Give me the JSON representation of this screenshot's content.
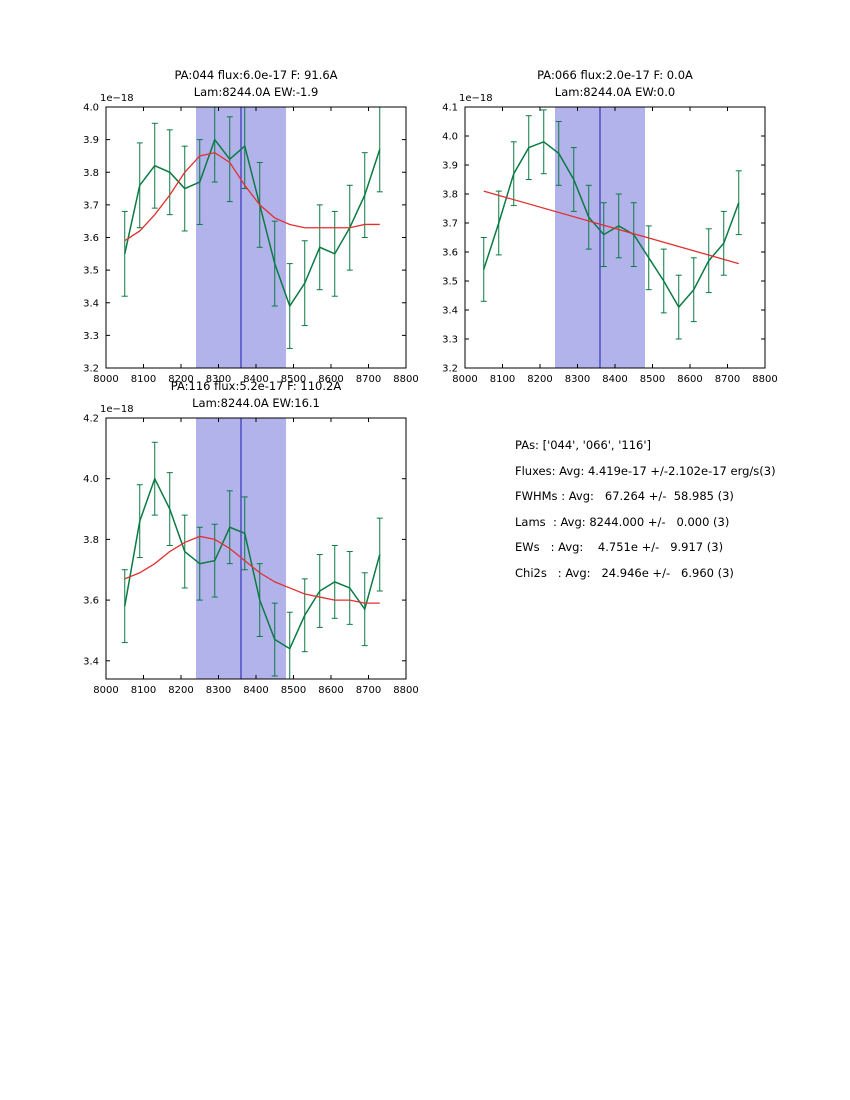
{
  "colors": {
    "series": "#0b7a43",
    "fit": "#e13030",
    "band": "#b3b3ec",
    "vline": "#3535bb",
    "axis": "#000000"
  },
  "stats": {
    "pas": "PAs: ['044', '066', '116']",
    "fluxes": "Fluxes: Avg: 4.419e-17 +/-2.102e-17 erg/s(3)",
    "fwhms": "FWHMs : Avg:   67.264 +/-  58.985 (3)",
    "lams": "Lams  : Avg: 8244.000 +/-   0.000 (3)",
    "ews": "EWs   : Avg:    4.751e +/-   9.917 (3)",
    "chi2s": "Chi2s   : Avg:   24.946e +/-   6.960 (3)"
  },
  "chart_data": [
    {
      "type": "line",
      "title_line1": "PA:044 flux:6.0e-17 F: 91.6A",
      "title_line2": "Lam:8244.0A EW:-1.9",
      "offset_label": "1e−18",
      "xlim": [
        8000,
        8800
      ],
      "ylim": [
        3.2,
        4.0
      ],
      "xticks": [
        "8000",
        "8100",
        "8200",
        "8300",
        "8400",
        "8500",
        "8600",
        "8700",
        "8800"
      ],
      "yticks": [
        "3.2",
        "3.3",
        "3.4",
        "3.5",
        "3.6",
        "3.7",
        "3.8",
        "3.9",
        "4.0"
      ],
      "band": [
        8240,
        8480
      ],
      "vline": 8360,
      "x": [
        8050,
        8090,
        8130,
        8170,
        8210,
        8250,
        8290,
        8330,
        8370,
        8410,
        8450,
        8490,
        8530,
        8570,
        8610,
        8650,
        8690,
        8730
      ],
      "y": [
        3.55,
        3.76,
        3.82,
        3.8,
        3.75,
        3.77,
        3.9,
        3.84,
        3.88,
        3.7,
        3.52,
        3.39,
        3.46,
        3.57,
        3.55,
        3.63,
        3.73,
        3.87
      ],
      "yerr": 0.13,
      "fit_x": [
        8050,
        8090,
        8130,
        8170,
        8210,
        8250,
        8290,
        8330,
        8370,
        8410,
        8450,
        8490,
        8530,
        8570,
        8610,
        8650,
        8690,
        8730
      ],
      "fit_y": [
        3.59,
        3.62,
        3.67,
        3.73,
        3.8,
        3.85,
        3.86,
        3.83,
        3.76,
        3.7,
        3.66,
        3.64,
        3.63,
        3.63,
        3.63,
        3.63,
        3.64,
        3.64
      ]
    },
    {
      "type": "line",
      "title_line1": "PA:066 flux:2.0e-17 F: 0.0A",
      "title_line2": "Lam:8244.0A EW:0.0",
      "offset_label": "1e−18",
      "xlim": [
        8000,
        8800
      ],
      "ylim": [
        3.2,
        4.1
      ],
      "xticks": [
        "8000",
        "8100",
        "8200",
        "8300",
        "8400",
        "8500",
        "8600",
        "8700",
        "8800"
      ],
      "yticks": [
        "3.2",
        "3.3",
        "3.4",
        "3.5",
        "3.6",
        "3.7",
        "3.8",
        "3.9",
        "4.0",
        "4.1"
      ],
      "band": [
        8240,
        8480
      ],
      "vline": 8360,
      "x": [
        8050,
        8090,
        8130,
        8170,
        8210,
        8250,
        8290,
        8330,
        8370,
        8410,
        8450,
        8490,
        8530,
        8570,
        8610,
        8650,
        8690,
        8730
      ],
      "y": [
        3.54,
        3.7,
        3.87,
        3.96,
        3.98,
        3.94,
        3.85,
        3.72,
        3.66,
        3.69,
        3.66,
        3.58,
        3.5,
        3.41,
        3.47,
        3.57,
        3.63,
        3.77
      ],
      "yerr": 0.11,
      "fit_x": [
        8050,
        8730
      ],
      "fit_y": [
        3.81,
        3.56
      ]
    },
    {
      "type": "line",
      "title_line1": "PA:116 flux:5.2e-17 F: 110.2A",
      "title_line2": "Lam:8244.0A EW:16.1",
      "offset_label": "1e−18",
      "xlim": [
        8000,
        8800
      ],
      "ylim": [
        3.34,
        4.2
      ],
      "xticks": [
        "8000",
        "8100",
        "8200",
        "8300",
        "8400",
        "8500",
        "8600",
        "8700",
        "8800"
      ],
      "yticks": [
        "3.4",
        "3.6",
        "3.8",
        "4.0",
        "4.2"
      ],
      "band": [
        8240,
        8480
      ],
      "vline": 8360,
      "x": [
        8050,
        8090,
        8130,
        8170,
        8210,
        8250,
        8290,
        8330,
        8370,
        8410,
        8450,
        8490,
        8530,
        8570,
        8610,
        8650,
        8690,
        8730
      ],
      "y": [
        3.58,
        3.86,
        4.0,
        3.9,
        3.76,
        3.72,
        3.73,
        3.84,
        3.82,
        3.6,
        3.47,
        3.44,
        3.55,
        3.63,
        3.66,
        3.64,
        3.57,
        3.75
      ],
      "yerr": 0.12,
      "fit_x": [
        8050,
        8090,
        8130,
        8170,
        8210,
        8250,
        8290,
        8330,
        8370,
        8410,
        8450,
        8490,
        8530,
        8570,
        8610,
        8650,
        8690,
        8730
      ],
      "fit_y": [
        3.67,
        3.69,
        3.72,
        3.76,
        3.79,
        3.81,
        3.8,
        3.77,
        3.73,
        3.69,
        3.66,
        3.64,
        3.62,
        3.61,
        3.6,
        3.6,
        3.59,
        3.59
      ]
    }
  ]
}
